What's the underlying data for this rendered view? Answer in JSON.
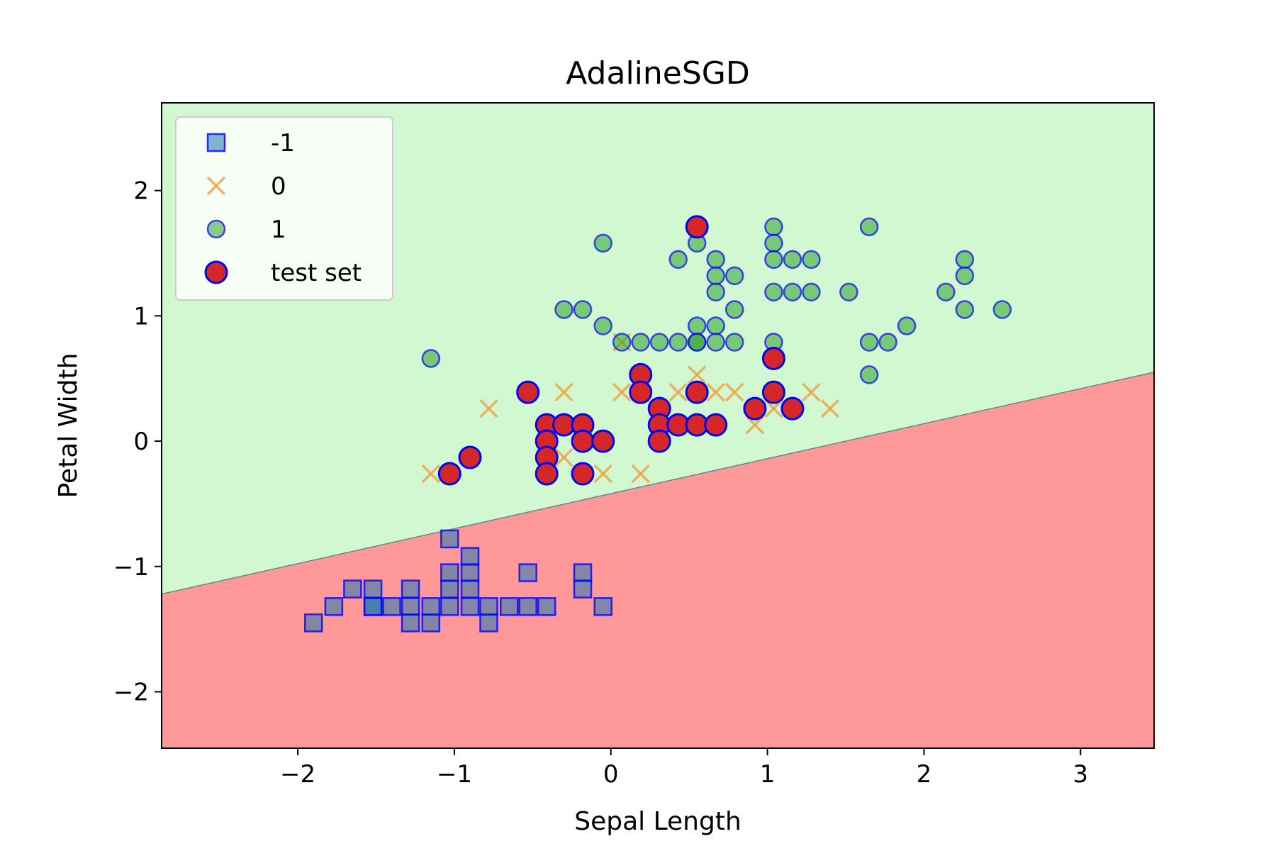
{
  "chart_data": {
    "type": "scatter",
    "title": "AdalineSGD",
    "xlabel": "Sepal Length",
    "ylabel": "Petal Width",
    "xlim": [
      -2.87,
      3.47
    ],
    "ylim": [
      -2.45,
      2.7
    ],
    "xticks": [
      -2,
      -1,
      0,
      1,
      2,
      3
    ],
    "yticks": [
      -2,
      -1,
      0,
      1,
      2
    ],
    "xtick_labels": [
      "−2",
      "−1",
      "0",
      "1",
      "2",
      "3"
    ],
    "ytick_labels": [
      "−2",
      "−1",
      "0",
      "1",
      "2"
    ],
    "grid": false,
    "legend_position": "top-left",
    "decision_boundary": {
      "x": [
        -2.87,
        3.47
      ],
      "y": [
        -1.22,
        0.55
      ],
      "upper_region_color": "#d2f8d2",
      "lower_region_color": "#ff9999",
      "boundary_color": "#5a8a8a"
    },
    "series": [
      {
        "name": "-1",
        "marker": "square",
        "color": "#1f77b4",
        "edge_color": "#0000ff",
        "x": [
          -1.9,
          -1.77,
          -1.65,
          -1.52,
          -1.52,
          -1.52,
          -1.4,
          -1.28,
          -1.28,
          -1.28,
          -1.15,
          -1.15,
          -1.03,
          -1.03,
          -1.03,
          -1.03,
          -0.9,
          -0.9,
          -0.9,
          -0.9,
          -0.78,
          -0.78,
          -0.65,
          -0.53,
          -0.53,
          -0.41,
          -0.18,
          -0.18,
          -0.05
        ],
        "y": [
          -1.45,
          -1.32,
          -1.18,
          -1.18,
          -1.32,
          -1.32,
          -1.32,
          -1.18,
          -1.32,
          -1.45,
          -1.32,
          -1.45,
          -0.78,
          -1.05,
          -1.18,
          -1.32,
          -0.92,
          -1.05,
          -1.18,
          -1.32,
          -1.32,
          -1.45,
          -1.32,
          -1.05,
          -1.32,
          -1.32,
          -1.05,
          -1.18,
          -1.32
        ]
      },
      {
        "name": "0",
        "marker": "x",
        "color": "#f0a040",
        "x": [
          -1.15,
          -0.78,
          -0.3,
          -0.3,
          -0.05,
          0.07,
          0.07,
          0.19,
          0.19,
          0.43,
          0.55,
          0.55,
          0.67,
          0.79,
          0.92,
          1.04,
          1.28,
          1.4
        ],
        "y": [
          -0.26,
          0.26,
          0.39,
          -0.13,
          -0.26,
          0.79,
          0.39,
          0.39,
          -0.26,
          0.39,
          0.53,
          0.39,
          0.39,
          0.39,
          0.13,
          0.26,
          0.39,
          0.26
        ]
      },
      {
        "name": "1",
        "marker": "circle",
        "color": "#2ca02c",
        "edge_color": "#0000ff",
        "x": [
          -1.15,
          -0.3,
          -0.18,
          -0.05,
          -0.05,
          0.07,
          0.19,
          0.31,
          0.43,
          0.43,
          0.55,
          0.55,
          0.55,
          0.55,
          0.67,
          0.67,
          0.67,
          0.67,
          0.67,
          0.79,
          0.79,
          0.79,
          1.04,
          1.04,
          1.04,
          1.04,
          1.04,
          1.16,
          1.16,
          1.28,
          1.28,
          1.52,
          1.65,
          1.65,
          1.65,
          1.77,
          1.89,
          2.14,
          2.26,
          2.26,
          2.26,
          2.5
        ],
        "y": [
          0.66,
          1.05,
          1.05,
          1.58,
          0.92,
          0.79,
          0.79,
          0.79,
          0.79,
          1.45,
          1.58,
          0.92,
          0.79,
          0.79,
          1.45,
          1.32,
          1.19,
          0.92,
          0.79,
          1.32,
          1.05,
          0.79,
          1.71,
          1.58,
          1.45,
          1.19,
          0.79,
          1.45,
          1.19,
          1.45,
          1.19,
          1.19,
          1.71,
          0.79,
          0.53,
          0.79,
          0.92,
          1.19,
          1.45,
          1.32,
          1.05,
          1.05
        ]
      },
      {
        "name": "test set",
        "marker": "circle",
        "color": "#d62728",
        "edge_color": "#0000ff",
        "x": [
          -1.03,
          -0.9,
          -0.53,
          -0.41,
          -0.41,
          -0.41,
          -0.41,
          -0.3,
          -0.18,
          -0.18,
          -0.18,
          -0.05,
          0.19,
          0.19,
          0.31,
          0.31,
          0.31,
          0.43,
          0.55,
          0.55,
          0.55,
          0.67,
          0.92,
          1.04,
          1.04,
          1.16
        ],
        "y": [
          -0.26,
          -0.13,
          0.39,
          0.13,
          0.0,
          -0.13,
          -0.26,
          0.13,
          0.13,
          0.0,
          -0.26,
          0.0,
          0.53,
          0.39,
          0.26,
          0.13,
          0.0,
          0.13,
          1.71,
          0.39,
          0.13,
          0.13,
          0.26,
          0.66,
          0.39,
          0.26
        ]
      }
    ]
  }
}
